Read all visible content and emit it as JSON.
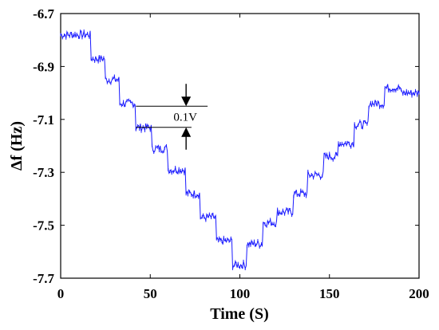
{
  "chart_data": {
    "type": "line",
    "title": "",
    "xlabel": "Time (S)",
    "ylabel": "Δf (Hz)",
    "xlim": [
      0,
      200
    ],
    "ylim": [
      -7.7,
      -6.7
    ],
    "x_ticks": [
      0,
      50,
      100,
      150,
      200
    ],
    "x_tick_labels": [
      "0",
      "50",
      "100",
      "150",
      "200"
    ],
    "y_ticks": [
      -6.7,
      -6.9,
      -7.1,
      -7.3,
      -7.5,
      -7.7
    ],
    "y_tick_labels": [
      "-6.7",
      "-6.9",
      "-7.1",
      "-7.3",
      "-7.5",
      "-7.7"
    ],
    "grid": false,
    "legend": "none",
    "series": [
      {
        "color": "#1a1aff",
        "steps": [
          {
            "x_start": 0,
            "x_end": 17,
            "y": -6.78
          },
          {
            "x_start": 17,
            "x_end": 25,
            "y": -6.87
          },
          {
            "x_start": 25,
            "x_end": 33,
            "y": -6.95
          },
          {
            "x_start": 33,
            "x_end": 42,
            "y": -7.04
          },
          {
            "x_start": 42,
            "x_end": 51,
            "y": -7.13
          },
          {
            "x_start": 51,
            "x_end": 60,
            "y": -7.21
          },
          {
            "x_start": 60,
            "x_end": 70,
            "y": -7.29
          },
          {
            "x_start": 70,
            "x_end": 78,
            "y": -7.38
          },
          {
            "x_start": 78,
            "x_end": 87,
            "y": -7.47
          },
          {
            "x_start": 87,
            "x_end": 96,
            "y": -7.56
          },
          {
            "x_start": 96,
            "x_end": 104,
            "y": -7.65
          },
          {
            "x_start": 104,
            "x_end": 113,
            "y": -7.57
          },
          {
            "x_start": 113,
            "x_end": 121,
            "y": -7.49
          },
          {
            "x_start": 121,
            "x_end": 130,
            "y": -7.45
          },
          {
            "x_start": 130,
            "x_end": 138,
            "y": -7.38
          },
          {
            "x_start": 138,
            "x_end": 147,
            "y": -7.31
          },
          {
            "x_start": 147,
            "x_end": 155,
            "y": -7.24
          },
          {
            "x_start": 155,
            "x_end": 164,
            "y": -7.19
          },
          {
            "x_start": 164,
            "x_end": 172,
            "y": -7.12
          },
          {
            "x_start": 172,
            "x_end": 181,
            "y": -7.04
          },
          {
            "x_start": 181,
            "x_end": 190,
            "y": -6.98
          },
          {
            "x_start": 190,
            "x_end": 200,
            "y": -7.0
          }
        ]
      }
    ],
    "annotation": {
      "text": "0.1V",
      "upper_level": -7.05,
      "lower_level": -7.13,
      "x_start": 42,
      "x_end": 82,
      "arrow_x": 70
    }
  }
}
